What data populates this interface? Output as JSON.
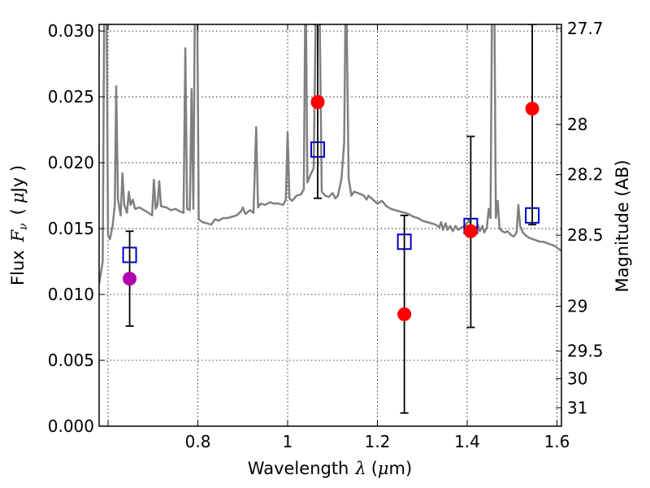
{
  "chart_data": {
    "type": "scatter",
    "xlabel": "Wavelength",
    "xlabel_symbol": "λ",
    "xlabel_unit_open": "(",
    "xlabel_unit_mu": "μ",
    "xlabel_unit_rest": "m)",
    "ylabel": "Flux",
    "ylabel_symbol_main": "F",
    "ylabel_symbol_sub": "ν",
    "ylabel_unit_open": "(",
    "ylabel_unit_mu": "μ",
    "ylabel_unit_rest": "Jy )",
    "y2label": "Magnitude (AB)",
    "xlim": [
      0.58,
      1.61
    ],
    "ylim": [
      0.0,
      0.0305
    ],
    "grid": true,
    "x_ticks": [
      {
        "value": 0.6,
        "label": ""
      },
      {
        "value": 0.8,
        "label": "0.8"
      },
      {
        "value": 1.0,
        "label": "1"
      },
      {
        "value": 1.2,
        "label": "1.2"
      },
      {
        "value": 1.4,
        "label": "1.4"
      },
      {
        "value": 1.6,
        "label": "1.6"
      }
    ],
    "y_ticks": [
      {
        "value": 0.0,
        "label": "0.000"
      },
      {
        "value": 0.005,
        "label": "0.005"
      },
      {
        "value": 0.01,
        "label": "0.010"
      },
      {
        "value": 0.015,
        "label": "0.015"
      },
      {
        "value": 0.02,
        "label": "0.020"
      },
      {
        "value": 0.025,
        "label": "0.025"
      },
      {
        "value": 0.03,
        "label": "0.030"
      }
    ],
    "y2_ticks": [
      {
        "flux": 0.0302,
        "label": "27.7"
      },
      {
        "flux": 0.0229,
        "label": "28"
      },
      {
        "flux": 0.0191,
        "label": "28.2"
      },
      {
        "flux": 0.0145,
        "label": "28.5"
      },
      {
        "flux": 0.0091,
        "label": "29"
      },
      {
        "flux": 0.0057,
        "label": "29.5"
      },
      {
        "flux": 0.0036,
        "label": "30"
      },
      {
        "flux": 0.0014,
        "label": "31"
      }
    ],
    "series": [
      {
        "kind": "line",
        "color": "#808080",
        "points": [
          [
            0.58,
            0.0108
          ],
          [
            0.588,
            0.0125
          ],
          [
            0.592,
            0.035
          ],
          [
            0.596,
            0.035
          ],
          [
            0.6,
            0.0145
          ],
          [
            0.604,
            0.0142
          ],
          [
            0.61,
            0.0152
          ],
          [
            0.615,
            0.0168
          ],
          [
            0.618,
            0.0258
          ],
          [
            0.622,
            0.0172
          ],
          [
            0.628,
            0.016
          ],
          [
            0.632,
            0.0192
          ],
          [
            0.636,
            0.0168
          ],
          [
            0.642,
            0.0162
          ],
          [
            0.646,
            0.0178
          ],
          [
            0.65,
            0.0168
          ],
          [
            0.655,
            0.0172
          ],
          [
            0.66,
            0.0165
          ],
          [
            0.67,
            0.0166
          ],
          [
            0.68,
            0.0164
          ],
          [
            0.69,
            0.0162
          ],
          [
            0.698,
            0.016
          ],
          [
            0.702,
            0.0187
          ],
          [
            0.706,
            0.0165
          ],
          [
            0.71,
            0.0168
          ],
          [
            0.714,
            0.0186
          ],
          [
            0.718,
            0.0167
          ],
          [
            0.73,
            0.0166
          ],
          [
            0.74,
            0.0164
          ],
          [
            0.75,
            0.0165
          ],
          [
            0.76,
            0.0163
          ],
          [
            0.768,
            0.0162
          ],
          [
            0.772,
            0.0287
          ],
          [
            0.776,
            0.0165
          ],
          [
            0.782,
            0.0164
          ],
          [
            0.786,
            0.0256
          ],
          [
            0.79,
            0.0165
          ],
          [
            0.794,
            0.035
          ],
          [
            0.798,
            0.035
          ],
          [
            0.802,
            0.0157
          ],
          [
            0.81,
            0.0155
          ],
          [
            0.82,
            0.0154
          ],
          [
            0.83,
            0.0153
          ],
          [
            0.838,
            0.0157
          ],
          [
            0.846,
            0.0156
          ],
          [
            0.856,
            0.0158
          ],
          [
            0.866,
            0.0158
          ],
          [
            0.876,
            0.0159
          ],
          [
            0.886,
            0.016
          ],
          [
            0.896,
            0.0163
          ],
          [
            0.9,
            0.0166
          ],
          [
            0.906,
            0.0161
          ],
          [
            0.916,
            0.0164
          ],
          [
            0.924,
            0.0162
          ],
          [
            0.93,
            0.0227
          ],
          [
            0.934,
            0.0166
          ],
          [
            0.94,
            0.0169
          ],
          [
            0.95,
            0.0168
          ],
          [
            0.96,
            0.017
          ],
          [
            0.97,
            0.0169
          ],
          [
            0.98,
            0.0169
          ],
          [
            0.99,
            0.0168
          ],
          [
            0.996,
            0.0172
          ],
          [
            1.0,
            0.0223
          ],
          [
            1.004,
            0.0173
          ],
          [
            1.01,
            0.0171
          ],
          [
            1.02,
            0.0175
          ],
          [
            1.03,
            0.0176
          ],
          [
            1.036,
            0.018
          ],
          [
            1.04,
            0.035
          ],
          [
            1.044,
            0.0185
          ],
          [
            1.05,
            0.019
          ],
          [
            1.058,
            0.0196
          ],
          [
            1.064,
            0.035
          ],
          [
            1.07,
            0.035
          ],
          [
            1.076,
            0.0178
          ],
          [
            1.084,
            0.0175
          ],
          [
            1.092,
            0.0174
          ],
          [
            1.1,
            0.0177
          ],
          [
            1.106,
            0.0173
          ],
          [
            1.112,
            0.0175
          ],
          [
            1.12,
            0.0188
          ],
          [
            1.126,
            0.0215
          ],
          [
            1.13,
            0.035
          ],
          [
            1.136,
            0.0188
          ],
          [
            1.142,
            0.0175
          ],
          [
            1.148,
            0.0178
          ],
          [
            1.156,
            0.0177
          ],
          [
            1.164,
            0.0176
          ],
          [
            1.17,
            0.0175
          ],
          [
            1.176,
            0.0172
          ],
          [
            1.18,
            0.0175
          ],
          [
            1.19,
            0.0172
          ],
          [
            1.2,
            0.0169
          ],
          [
            1.21,
            0.0171
          ],
          [
            1.22,
            0.0167
          ],
          [
            1.23,
            0.0165
          ],
          [
            1.24,
            0.0164
          ],
          [
            1.25,
            0.0163
          ],
          [
            1.26,
            0.0162
          ],
          [
            1.27,
            0.0161
          ],
          [
            1.28,
            0.0159
          ],
          [
            1.29,
            0.0158
          ],
          [
            1.3,
            0.0156
          ],
          [
            1.31,
            0.0155
          ],
          [
            1.32,
            0.0154
          ],
          [
            1.33,
            0.0153
          ],
          [
            1.338,
            0.0151
          ],
          [
            1.342,
            0.0155
          ],
          [
            1.346,
            0.0149
          ],
          [
            1.352,
            0.0154
          ],
          [
            1.356,
            0.0149
          ],
          [
            1.362,
            0.0152
          ],
          [
            1.368,
            0.0148
          ],
          [
            1.374,
            0.0152
          ],
          [
            1.38,
            0.0149
          ],
          [
            1.388,
            0.0151
          ],
          [
            1.396,
            0.0152
          ],
          [
            1.404,
            0.0157
          ],
          [
            1.41,
            0.015
          ],
          [
            1.418,
            0.0149
          ],
          [
            1.424,
            0.0153
          ],
          [
            1.428,
            0.0148
          ],
          [
            1.434,
            0.0152
          ],
          [
            1.438,
            0.0147
          ],
          [
            1.444,
            0.0151
          ],
          [
            1.448,
            0.0165
          ],
          [
            1.452,
            0.0158
          ],
          [
            1.456,
            0.035
          ],
          [
            1.46,
            0.035
          ],
          [
            1.464,
            0.0158
          ],
          [
            1.468,
            0.0171
          ],
          [
            1.472,
            0.015
          ],
          [
            1.478,
            0.0148
          ],
          [
            1.484,
            0.0147
          ],
          [
            1.49,
            0.0148
          ],
          [
            1.498,
            0.0145
          ],
          [
            1.504,
            0.0144
          ],
          [
            1.51,
            0.0147
          ],
          [
            1.514,
            0.0168
          ],
          [
            1.518,
            0.0152
          ],
          [
            1.524,
            0.0147
          ],
          [
            1.53,
            0.0145
          ],
          [
            1.538,
            0.0143
          ],
          [
            1.546,
            0.0142
          ],
          [
            1.554,
            0.0141
          ],
          [
            1.562,
            0.014
          ],
          [
            1.57,
            0.014
          ],
          [
            1.578,
            0.0139
          ],
          [
            1.586,
            0.0138
          ],
          [
            1.594,
            0.0137
          ],
          [
            1.602,
            0.0135
          ],
          [
            1.61,
            0.0133
          ]
        ]
      },
      {
        "kind": "open-squares",
        "color": "#0000cc",
        "points": [
          [
            0.648,
            0.013
          ],
          [
            1.067,
            0.021
          ],
          [
            1.26,
            0.014
          ],
          [
            1.408,
            0.0152
          ],
          [
            1.545,
            0.016
          ]
        ]
      },
      {
        "kind": "points",
        "color": "#ff0000",
        "points": [
          {
            "x": 1.067,
            "y": 0.0246,
            "ylo": 0.0173,
            "yhi": 0.0305
          },
          {
            "x": 1.26,
            "y": 0.0085,
            "ylo": 0.001,
            "yhi": 0.016
          },
          {
            "x": 1.408,
            "y": 0.0148,
            "ylo": 0.0075,
            "yhi": 0.022
          },
          {
            "x": 1.545,
            "y": 0.0241,
            "ylo": 0.0153,
            "yhi": 0.0305
          }
        ]
      },
      {
        "kind": "points",
        "color": "#b000b0",
        "points": [
          {
            "x": 0.648,
            "y": 0.0112,
            "ylo": 0.0076,
            "yhi": 0.0148
          }
        ]
      }
    ]
  }
}
